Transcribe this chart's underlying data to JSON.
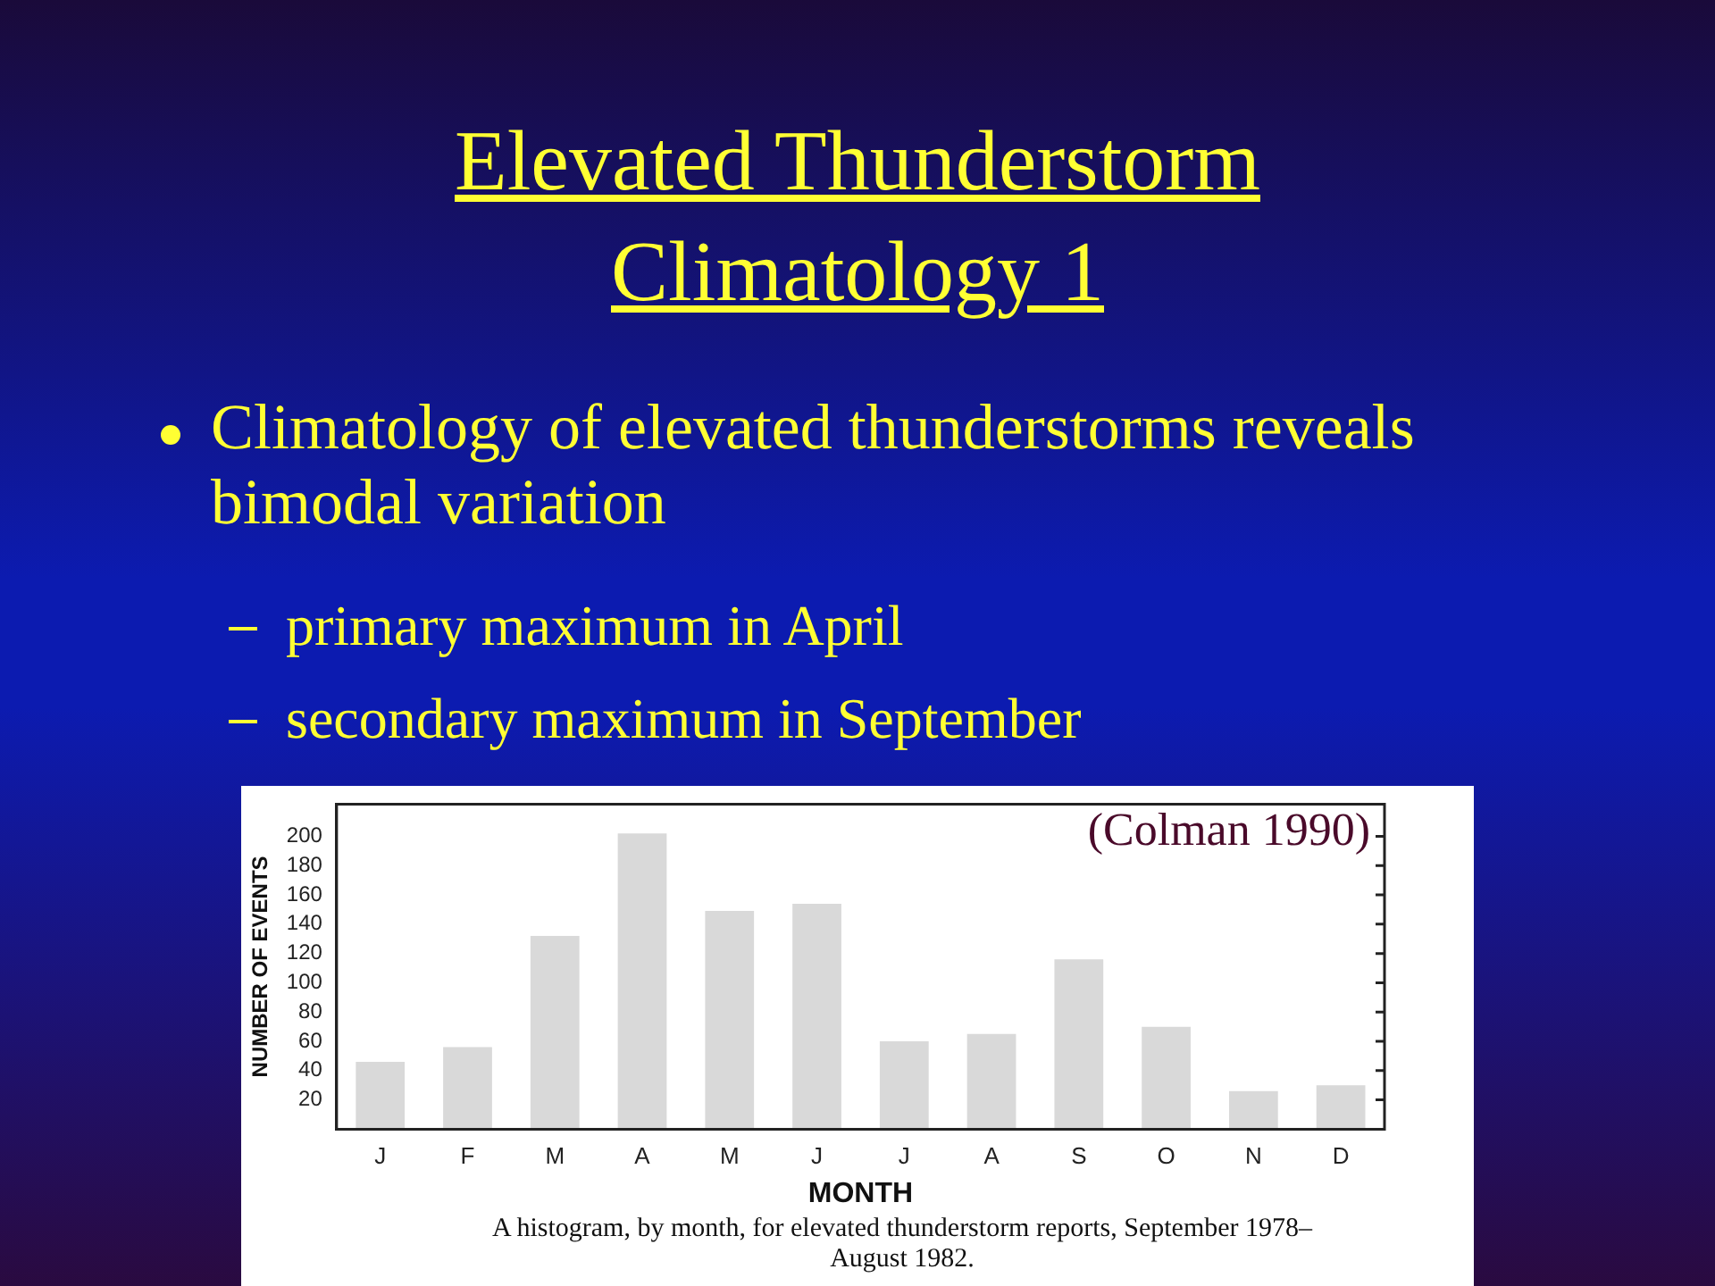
{
  "chart_data": {
    "type": "bar",
    "title": "Elevated Thunderstorm Climatology 1",
    "subtitle": "Climatology of elevated thunderstorms reveals bimodal variation",
    "annotations": [
      "primary maximum in April",
      "secondary maximum in September",
      "(Colman 1990)",
      "A histogram, by month, for elevated thunderstorm reports, September 1978–August 1982."
    ],
    "categories": [
      "J",
      "F",
      "M",
      "A",
      "M",
      "J",
      "J",
      "A",
      "S",
      "O",
      "N",
      "D"
    ],
    "values": [
      46,
      56,
      132,
      202,
      149,
      154,
      60,
      65,
      116,
      70,
      26,
      30
    ],
    "color": "#d9d9d9",
    "xlabel": "MONTH",
    "ylabel": "NUMBER OF EVENTS",
    "ylim": [
      0,
      222
    ],
    "yticks": [
      20,
      40,
      60,
      80,
      100,
      120,
      140,
      160,
      180,
      200
    ],
    "grid": false,
    "legend": false
  }
}
